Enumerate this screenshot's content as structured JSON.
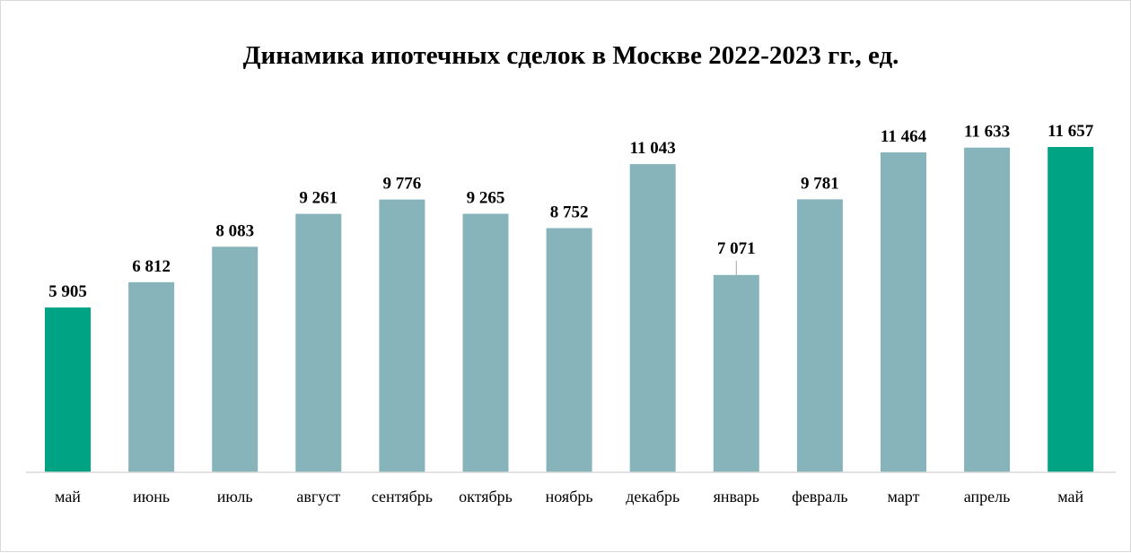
{
  "chart_data": {
    "type": "bar",
    "title": "Динамика ипотечных сделок в Москве 2022-2023 гг., ед.",
    "categories": [
      "май",
      "июнь",
      "июль",
      "август",
      "сентябрь",
      "октябрь",
      "ноябрь",
      "декабрь",
      "январь",
      "февраль",
      "март",
      "апрель",
      "май"
    ],
    "values": [
      5905,
      6812,
      8083,
      9261,
      9776,
      9265,
      8752,
      11043,
      7071,
      9781,
      11464,
      11633,
      11657
    ],
    "value_labels": [
      "5 905",
      "6 812",
      "8 083",
      "9 261",
      "9 776",
      "9 265",
      "8 752",
      "11 043",
      "7 071",
      "9 781",
      "11 464",
      "11 633",
      "11 657"
    ],
    "highlighted_indices": [
      0,
      12
    ],
    "ylim": [
      0,
      11657
    ],
    "grid": false,
    "legend": "none",
    "colors": {
      "bar": "#86b4ba",
      "highlight": "#00a383",
      "axis": "#d9d9d9"
    }
  }
}
